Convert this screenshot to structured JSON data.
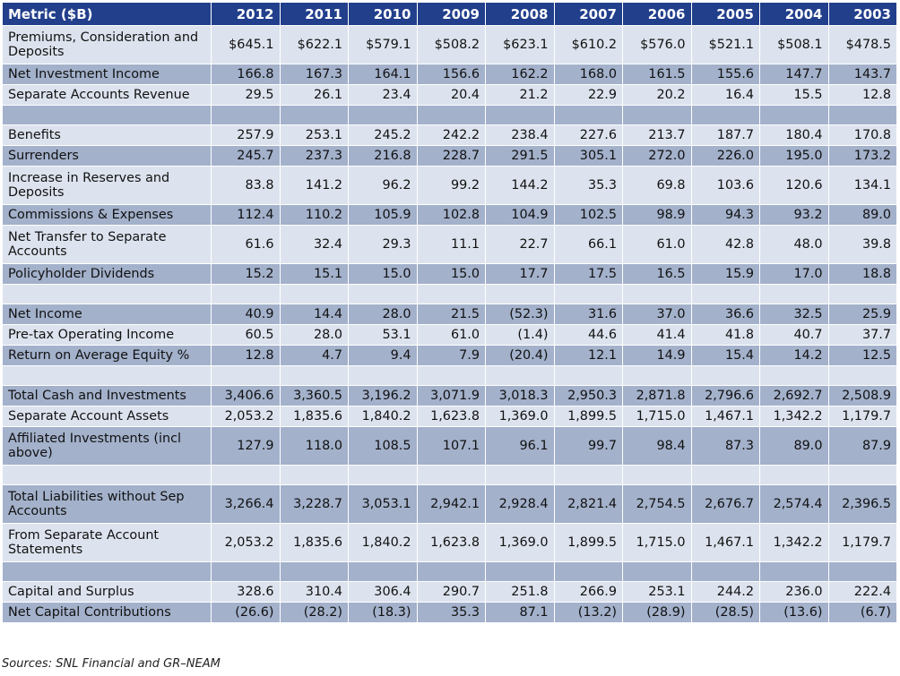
{
  "table": {
    "header": {
      "metric": "Metric ($B)",
      "years": [
        "2012",
        "2011",
        "2010",
        "2009",
        "2008",
        "2007",
        "2006",
        "2005",
        "2004",
        "2003"
      ]
    },
    "rows": [
      {
        "label": "Premiums, Consideration and Deposits",
        "values": [
          "$645.1",
          "$622.1",
          "$579.1",
          "$508.2",
          "$623.1",
          "$610.2",
          "$576.0",
          "$521.1",
          "$508.1",
          "$478.5"
        ]
      },
      {
        "label": "Net Investment Income",
        "values": [
          "166.8",
          "167.3",
          "164.1",
          "156.6",
          "162.2",
          "168.0",
          "161.5",
          "155.6",
          "147.7",
          "143.7"
        ]
      },
      {
        "label": "Separate Accounts Revenue",
        "values": [
          "29.5",
          "26.1",
          "23.4",
          "20.4",
          "21.2",
          "22.9",
          "20.2",
          "16.4",
          "15.5",
          "12.8"
        ]
      },
      {
        "label": "",
        "values": [
          "",
          "",
          "",
          "",
          "",
          "",
          "",
          "",
          "",
          ""
        ]
      },
      {
        "label": "Benefits",
        "values": [
          "257.9",
          "253.1",
          "245.2",
          "242.2",
          "238.4",
          "227.6",
          "213.7",
          "187.7",
          "180.4",
          "170.8"
        ]
      },
      {
        "label": "Surrenders",
        "values": [
          "245.7",
          "237.3",
          "216.8",
          "228.7",
          "291.5",
          "305.1",
          "272.0",
          "226.0",
          "195.0",
          "173.2"
        ]
      },
      {
        "label": "Increase in Reserves and Deposits",
        "values": [
          "83.8",
          "141.2",
          "96.2",
          "99.2",
          "144.2",
          "35.3",
          "69.8",
          "103.6",
          "120.6",
          "134.1"
        ]
      },
      {
        "label": "Commissions & Expenses",
        "values": [
          "112.4",
          "110.2",
          "105.9",
          "102.8",
          "104.9",
          "102.5",
          "98.9",
          "94.3",
          "93.2",
          "89.0"
        ]
      },
      {
        "label": "Net Transfer to Separate Accounts",
        "values": [
          "61.6",
          "32.4",
          "29.3",
          "11.1",
          "22.7",
          "66.1",
          "61.0",
          "42.8",
          "48.0",
          "39.8"
        ]
      },
      {
        "label": "Policyholder Dividends",
        "values": [
          "15.2",
          "15.1",
          "15.0",
          "15.0",
          "17.7",
          "17.5",
          "16.5",
          "15.9",
          "17.0",
          "18.8"
        ]
      },
      {
        "label": "",
        "values": [
          "",
          "",
          "",
          "",
          "",
          "",
          "",
          "",
          "",
          ""
        ]
      },
      {
        "label": "Net Income",
        "values": [
          "40.9",
          "14.4",
          "28.0",
          "21.5",
          "(52.3)",
          "31.6",
          "37.0",
          "36.6",
          "32.5",
          "25.9"
        ]
      },
      {
        "label": "Pre-tax Operating Income",
        "values": [
          "60.5",
          "28.0",
          "53.1",
          "61.0",
          "(1.4)",
          "44.6",
          "41.4",
          "41.8",
          "40.7",
          "37.7"
        ]
      },
      {
        "label": "Return on Average Equity %",
        "values": [
          "12.8",
          "4.7",
          "9.4",
          "7.9",
          "(20.4)",
          "12.1",
          "14.9",
          "15.4",
          "14.2",
          "12.5"
        ]
      },
      {
        "label": "",
        "values": [
          "",
          "",
          "",
          "",
          "",
          "",
          "",
          "",
          "",
          ""
        ]
      },
      {
        "label": "Total Cash and Investments",
        "values": [
          "3,406.6",
          "3,360.5",
          "3,196.2",
          "3,071.9",
          "3,018.3",
          "2,950.3",
          "2,871.8",
          "2,796.6",
          "2,692.7",
          "2,508.9"
        ]
      },
      {
        "label": "Separate Account Assets",
        "values": [
          "2,053.2",
          "1,835.6",
          "1,840.2",
          "1,623.8",
          "1,369.0",
          "1,899.5",
          "1,715.0",
          "1,467.1",
          "1,342.2",
          "1,179.7"
        ]
      },
      {
        "label": "Affiliated Investments (incl above)",
        "values": [
          "127.9",
          "118.0",
          "108.5",
          "107.1",
          "96.1",
          "99.7",
          "98.4",
          "87.3",
          "89.0",
          "87.9"
        ]
      },
      {
        "label": "",
        "values": [
          "",
          "",
          "",
          "",
          "",
          "",
          "",
          "",
          "",
          ""
        ]
      },
      {
        "label": "Total Liabilities without Sep Accounts",
        "values": [
          "3,266.4",
          "3,228.7",
          "3,053.1",
          "2,942.1",
          "2,928.4",
          "2,821.4",
          "2,754.5",
          "2,676.7",
          "2,574.4",
          "2,396.5"
        ]
      },
      {
        "label": "From Separate Account Statements",
        "values": [
          "2,053.2",
          "1,835.6",
          "1,840.2",
          "1,623.8",
          "1,369.0",
          "1,899.5",
          "1,715.0",
          "1,467.1",
          "1,342.2",
          "1,179.7"
        ]
      },
      {
        "label": "",
        "values": [
          "",
          "",
          "",
          "",
          "",
          "",
          "",
          "",
          "",
          ""
        ]
      },
      {
        "label": "Capital and Surplus",
        "values": [
          "328.6",
          "310.4",
          "306.4",
          "290.7",
          "251.8",
          "266.9",
          "253.1",
          "244.2",
          "236.0",
          "222.4"
        ]
      },
      {
        "label": "Net Capital Contributions",
        "values": [
          "(26.6)",
          "(28.2)",
          "(18.3)",
          "35.3",
          "87.1",
          "(13.2)",
          "(28.9)",
          "(28.5)",
          "(13.6)",
          "(6.7)"
        ]
      }
    ]
  },
  "source": "Sources: SNL Financial and GR–NEAM",
  "colors": {
    "header_bg": "#223f8c",
    "row_light": "#dde3ee",
    "row_dark": "#a3b1cb"
  }
}
